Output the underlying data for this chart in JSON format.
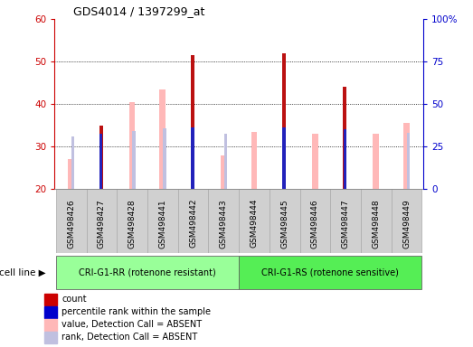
{
  "title": "GDS4014 / 1397299_at",
  "samples": [
    "GSM498426",
    "GSM498427",
    "GSM498428",
    "GSM498441",
    "GSM498442",
    "GSM498443",
    "GSM498444",
    "GSM498445",
    "GSM498446",
    "GSM498447",
    "GSM498448",
    "GSM498449"
  ],
  "count_values": [
    null,
    35,
    null,
    null,
    51.5,
    null,
    null,
    52,
    null,
    44,
    null,
    null
  ],
  "percentile_rank": [
    null,
    32.5,
    null,
    null,
    36.5,
    null,
    null,
    36.5,
    null,
    35,
    null,
    null
  ],
  "absent_value": [
    27,
    null,
    40.5,
    43.5,
    null,
    28,
    33.5,
    null,
    33,
    null,
    33,
    35.5
  ],
  "absent_rank": [
    31,
    null,
    34,
    35.5,
    null,
    32.5,
    null,
    null,
    null,
    null,
    null,
    33
  ],
  "ymin": 20,
  "ymax": 60,
  "yticks_left": [
    20,
    30,
    40,
    50,
    60
  ],
  "yticks_right": [
    0,
    25,
    50,
    75,
    100
  ],
  "group1_label": "CRI-G1-RR (rotenone resistant)",
  "group2_label": "CRI-G1-RS (rotenone sensitive)",
  "group1_count": 6,
  "group2_count": 6,
  "cell_line_label": "cell line",
  "legend_items": [
    {
      "color": "#cc0000",
      "label": "count"
    },
    {
      "color": "#0000cc",
      "label": "percentile rank within the sample"
    },
    {
      "color": "#ffb8b8",
      "label": "value, Detection Call = ABSENT"
    },
    {
      "color": "#c0c0e0",
      "label": "rank, Detection Call = ABSENT"
    }
  ],
  "count_color": "#bb1111",
  "percentile_color": "#2222bb",
  "absent_value_color": "#ffb8b8",
  "absent_rank_color": "#c0c0e0",
  "group1_bg": "#99ff99",
  "group2_bg": "#55ee55",
  "tick_bg": "#d0d0d0",
  "axis_color_left": "#cc0000",
  "axis_color_right": "#0000cc",
  "plot_bg": "white",
  "border_color": "#888888"
}
